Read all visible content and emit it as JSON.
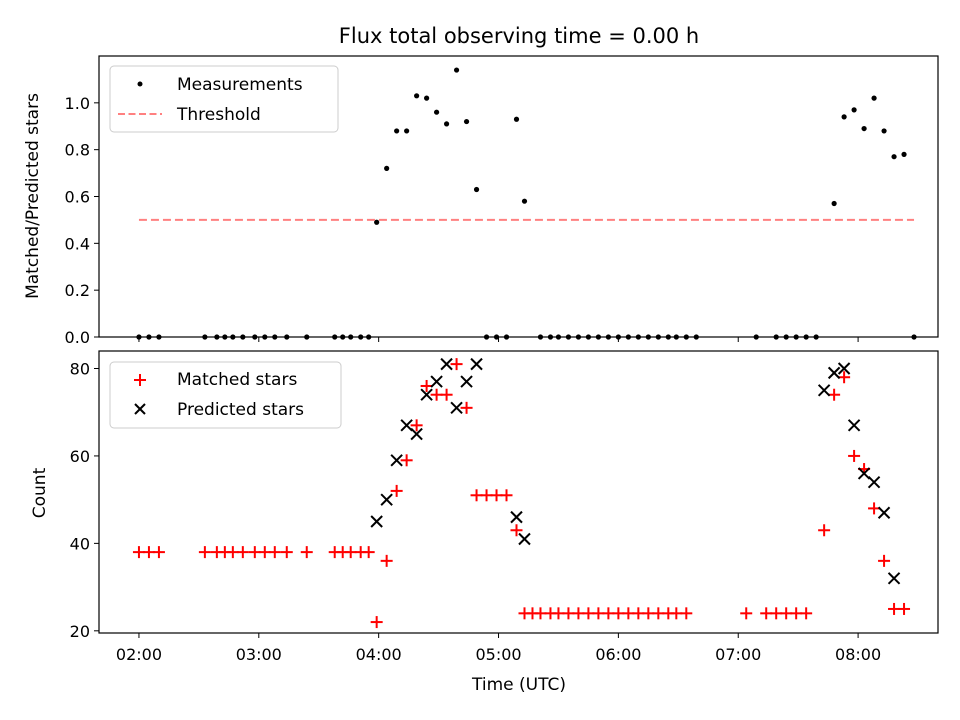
{
  "chart_data": {
    "title": "Flux total observing time = 0.00 h",
    "xlabel": "Time (UTC)",
    "xlim": [
      "01:40",
      "08:40"
    ],
    "x_ticks": [
      "02:00",
      "03:00",
      "04:00",
      "05:00",
      "06:00",
      "07:00",
      "08:00"
    ],
    "panels": [
      {
        "type": "scatter",
        "ylabel": "Matched/Predicted stars",
        "ylim": [
          0,
          1.2
        ],
        "y_ticks": [
          "0.0",
          "0.2",
          "0.4",
          "0.6",
          "0.8",
          "1.0"
        ],
        "legend_position": "top-left",
        "series": [
          {
            "name": "Measurements",
            "marker": "dot",
            "color": "#000000",
            "points": [
              [
                "02:00",
                0
              ],
              [
                "02:05",
                0
              ],
              [
                "02:10",
                0
              ],
              [
                "02:33",
                0
              ],
              [
                "02:39",
                0
              ],
              [
                "02:43",
                0
              ],
              [
                "02:47",
                0
              ],
              [
                "02:52",
                0
              ],
              [
                "02:58",
                0
              ],
              [
                "03:03",
                0
              ],
              [
                "03:08",
                0
              ],
              [
                "03:14",
                0
              ],
              [
                "03:24",
                0
              ],
              [
                "03:38",
                0
              ],
              [
                "03:42",
                0
              ],
              [
                "03:46",
                0
              ],
              [
                "03:51",
                0
              ],
              [
                "03:55",
                0
              ],
              [
                "03:59",
                0.49
              ],
              [
                "04:04",
                0.72
              ],
              [
                "04:09",
                0.88
              ],
              [
                "04:14",
                0.88
              ],
              [
                "04:19",
                1.03
              ],
              [
                "04:24",
                1.02
              ],
              [
                "04:29",
                0.96
              ],
              [
                "04:34",
                0.91
              ],
              [
                "04:39",
                1.14
              ],
              [
                "04:44",
                0.92
              ],
              [
                "04:49",
                0.63
              ],
              [
                "04:54",
                0
              ],
              [
                "04:59",
                0
              ],
              [
                "05:04",
                0
              ],
              [
                "05:09",
                0.93
              ],
              [
                "05:13",
                0.58
              ],
              [
                "05:21",
                0
              ],
              [
                "05:26",
                0
              ],
              [
                "05:30",
                0
              ],
              [
                "05:35",
                0
              ],
              [
                "05:40",
                0
              ],
              [
                "05:45",
                0
              ],
              [
                "05:50",
                0
              ],
              [
                "05:55",
                0
              ],
              [
                "06:00",
                0
              ],
              [
                "06:05",
                0
              ],
              [
                "06:10",
                0
              ],
              [
                "06:15",
                0
              ],
              [
                "06:20",
                0
              ],
              [
                "06:25",
                0
              ],
              [
                "06:29",
                0
              ],
              [
                "06:34",
                0
              ],
              [
                "06:39",
                0
              ],
              [
                "07:09",
                0
              ],
              [
                "07:19",
                0
              ],
              [
                "07:24",
                0
              ],
              [
                "07:29",
                0
              ],
              [
                "07:34",
                0
              ],
              [
                "07:39",
                0
              ],
              [
                "07:48",
                0.57
              ],
              [
                "07:53",
                0.94
              ],
              [
                "07:58",
                0.97
              ],
              [
                "08:03",
                0.89
              ],
              [
                "08:08",
                1.02
              ],
              [
                "08:13",
                0.88
              ],
              [
                "08:18",
                0.77
              ],
              [
                "08:23",
                0.78
              ],
              [
                "08:28",
                0
              ]
            ]
          },
          {
            "name": "Threshold",
            "marker": "dashed-line",
            "color": "#ff8080",
            "points": [
              [
                "02:00",
                0.5
              ],
              [
                "08:28",
                0.5
              ]
            ]
          }
        ]
      },
      {
        "type": "scatter",
        "ylabel": "Count",
        "ylim": [
          19.5,
          84
        ],
        "y_ticks": [
          "20",
          "40",
          "60",
          "80"
        ],
        "legend_position": "top-left",
        "series": [
          {
            "name": "Matched stars",
            "marker": "plus",
            "color": "#ff0000",
            "points": [
              [
                "02:00",
                38
              ],
              [
                "02:05",
                38
              ],
              [
                "02:10",
                38
              ],
              [
                "02:33",
                38
              ],
              [
                "02:39",
                38
              ],
              [
                "02:43",
                38
              ],
              [
                "02:47",
                38
              ],
              [
                "02:52",
                38
              ],
              [
                "02:58",
                38
              ],
              [
                "03:03",
                38
              ],
              [
                "03:08",
                38
              ],
              [
                "03:14",
                38
              ],
              [
                "03:24",
                38
              ],
              [
                "03:38",
                38
              ],
              [
                "03:42",
                38
              ],
              [
                "03:46",
                38
              ],
              [
                "03:51",
                38
              ],
              [
                "03:55",
                38
              ],
              [
                "03:59",
                22
              ],
              [
                "04:04",
                36
              ],
              [
                "04:09",
                52
              ],
              [
                "04:14",
                59
              ],
              [
                "04:19",
                67
              ],
              [
                "04:24",
                76
              ],
              [
                "04:29",
                74
              ],
              [
                "04:34",
                74
              ],
              [
                "04:39",
                81
              ],
              [
                "04:44",
                71
              ],
              [
                "04:49",
                51
              ],
              [
                "04:54",
                51
              ],
              [
                "04:59",
                51
              ],
              [
                "05:04",
                51
              ],
              [
                "05:09",
                43
              ],
              [
                "05:13",
                24
              ],
              [
                "05:17",
                24
              ],
              [
                "05:21",
                24
              ],
              [
                "05:26",
                24
              ],
              [
                "05:30",
                24
              ],
              [
                "05:35",
                24
              ],
              [
                "05:40",
                24
              ],
              [
                "05:45",
                24
              ],
              [
                "05:50",
                24
              ],
              [
                "05:55",
                24
              ],
              [
                "06:00",
                24
              ],
              [
                "06:05",
                24
              ],
              [
                "06:10",
                24
              ],
              [
                "06:15",
                24
              ],
              [
                "06:20",
                24
              ],
              [
                "06:25",
                24
              ],
              [
                "06:29",
                24
              ],
              [
                "06:34",
                24
              ],
              [
                "07:04",
                24
              ],
              [
                "07:14",
                24
              ],
              [
                "07:19",
                24
              ],
              [
                "07:24",
                24
              ],
              [
                "07:29",
                24
              ],
              [
                "07:34",
                24
              ],
              [
                "07:43",
                43
              ],
              [
                "07:48",
                74
              ],
              [
                "07:53",
                78
              ],
              [
                "07:58",
                60
              ],
              [
                "08:03",
                57
              ],
              [
                "08:08",
                48
              ],
              [
                "08:13",
                36
              ],
              [
                "08:18",
                25
              ],
              [
                "08:23",
                25
              ]
            ]
          },
          {
            "name": "Predicted stars",
            "marker": "x",
            "color": "#000000",
            "points": [
              [
                "03:59",
                45
              ],
              [
                "04:04",
                50
              ],
              [
                "04:09",
                59
              ],
              [
                "04:14",
                67
              ],
              [
                "04:19",
                65
              ],
              [
                "04:24",
                74
              ],
              [
                "04:29",
                77
              ],
              [
                "04:34",
                81
              ],
              [
                "04:39",
                71
              ],
              [
                "04:44",
                77
              ],
              [
                "04:49",
                81
              ],
              [
                "05:09",
                46
              ],
              [
                "05:13",
                41
              ],
              [
                "07:43",
                75
              ],
              [
                "07:48",
                79
              ],
              [
                "07:53",
                80
              ],
              [
                "07:58",
                67
              ],
              [
                "08:03",
                56
              ],
              [
                "08:08",
                54
              ],
              [
                "08:13",
                47
              ],
              [
                "08:18",
                32
              ]
            ]
          }
        ]
      }
    ]
  }
}
